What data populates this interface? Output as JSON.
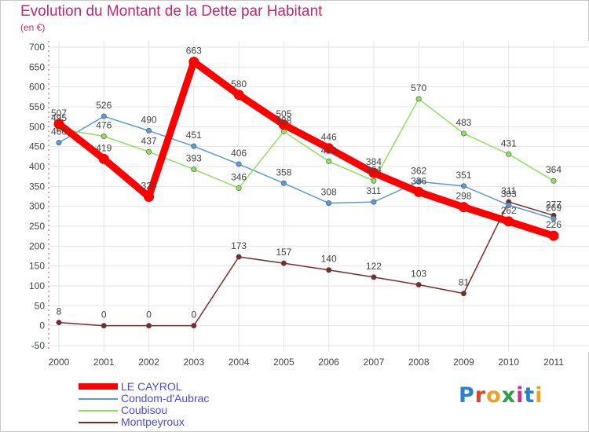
{
  "title": "Evolution du Montant de la Dette par Habitant",
  "subtitle": "(en €)",
  "logo": {
    "text": "Proxiti",
    "colors": [
      "#2a7fd0",
      "#e04020",
      "#f0a020",
      "#2aa040",
      "#d03080",
      "#2a7fd0",
      "#f0a020"
    ]
  },
  "chart_data": {
    "type": "line",
    "title": "Evolution du Montant de la Dette par Habitant",
    "subtitle": "(en €)",
    "xlabel": "",
    "ylabel": "",
    "x": [
      "2000",
      "2001",
      "2002",
      "2003",
      "2004",
      "2005",
      "2006",
      "2007",
      "2008",
      "2009",
      "2010",
      "2011"
    ],
    "ylim": [
      -50,
      700
    ],
    "yticks": [
      -50,
      0,
      50,
      100,
      150,
      200,
      250,
      300,
      350,
      400,
      450,
      500,
      550,
      600,
      650,
      700
    ],
    "grid": true,
    "legend_position": "bottom-left",
    "series": [
      {
        "name": "LE CAYROL",
        "color": "#ff0000",
        "values": [
          507,
          419,
          324,
          663,
          580,
          505,
          446,
          384,
          336,
          298,
          262,
          226
        ]
      },
      {
        "name": "Condom-d'Aubrac",
        "color": "#5a9ad8",
        "values": [
          460,
          526,
          490,
          451,
          406,
          358,
          308,
          311,
          362,
          351,
          303,
          269
        ]
      },
      {
        "name": "Coubisou",
        "color": "#90e060",
        "values": [
          495,
          476,
          437,
          393,
          346,
          488,
          413,
          364,
          570,
          483,
          431,
          364
        ]
      },
      {
        "name": "Montpeyroux",
        "color": "#7a2a2a",
        "values": [
          8,
          0,
          0,
          0,
          173,
          157,
          140,
          122,
          103,
          81,
          311,
          277
        ]
      }
    ]
  }
}
